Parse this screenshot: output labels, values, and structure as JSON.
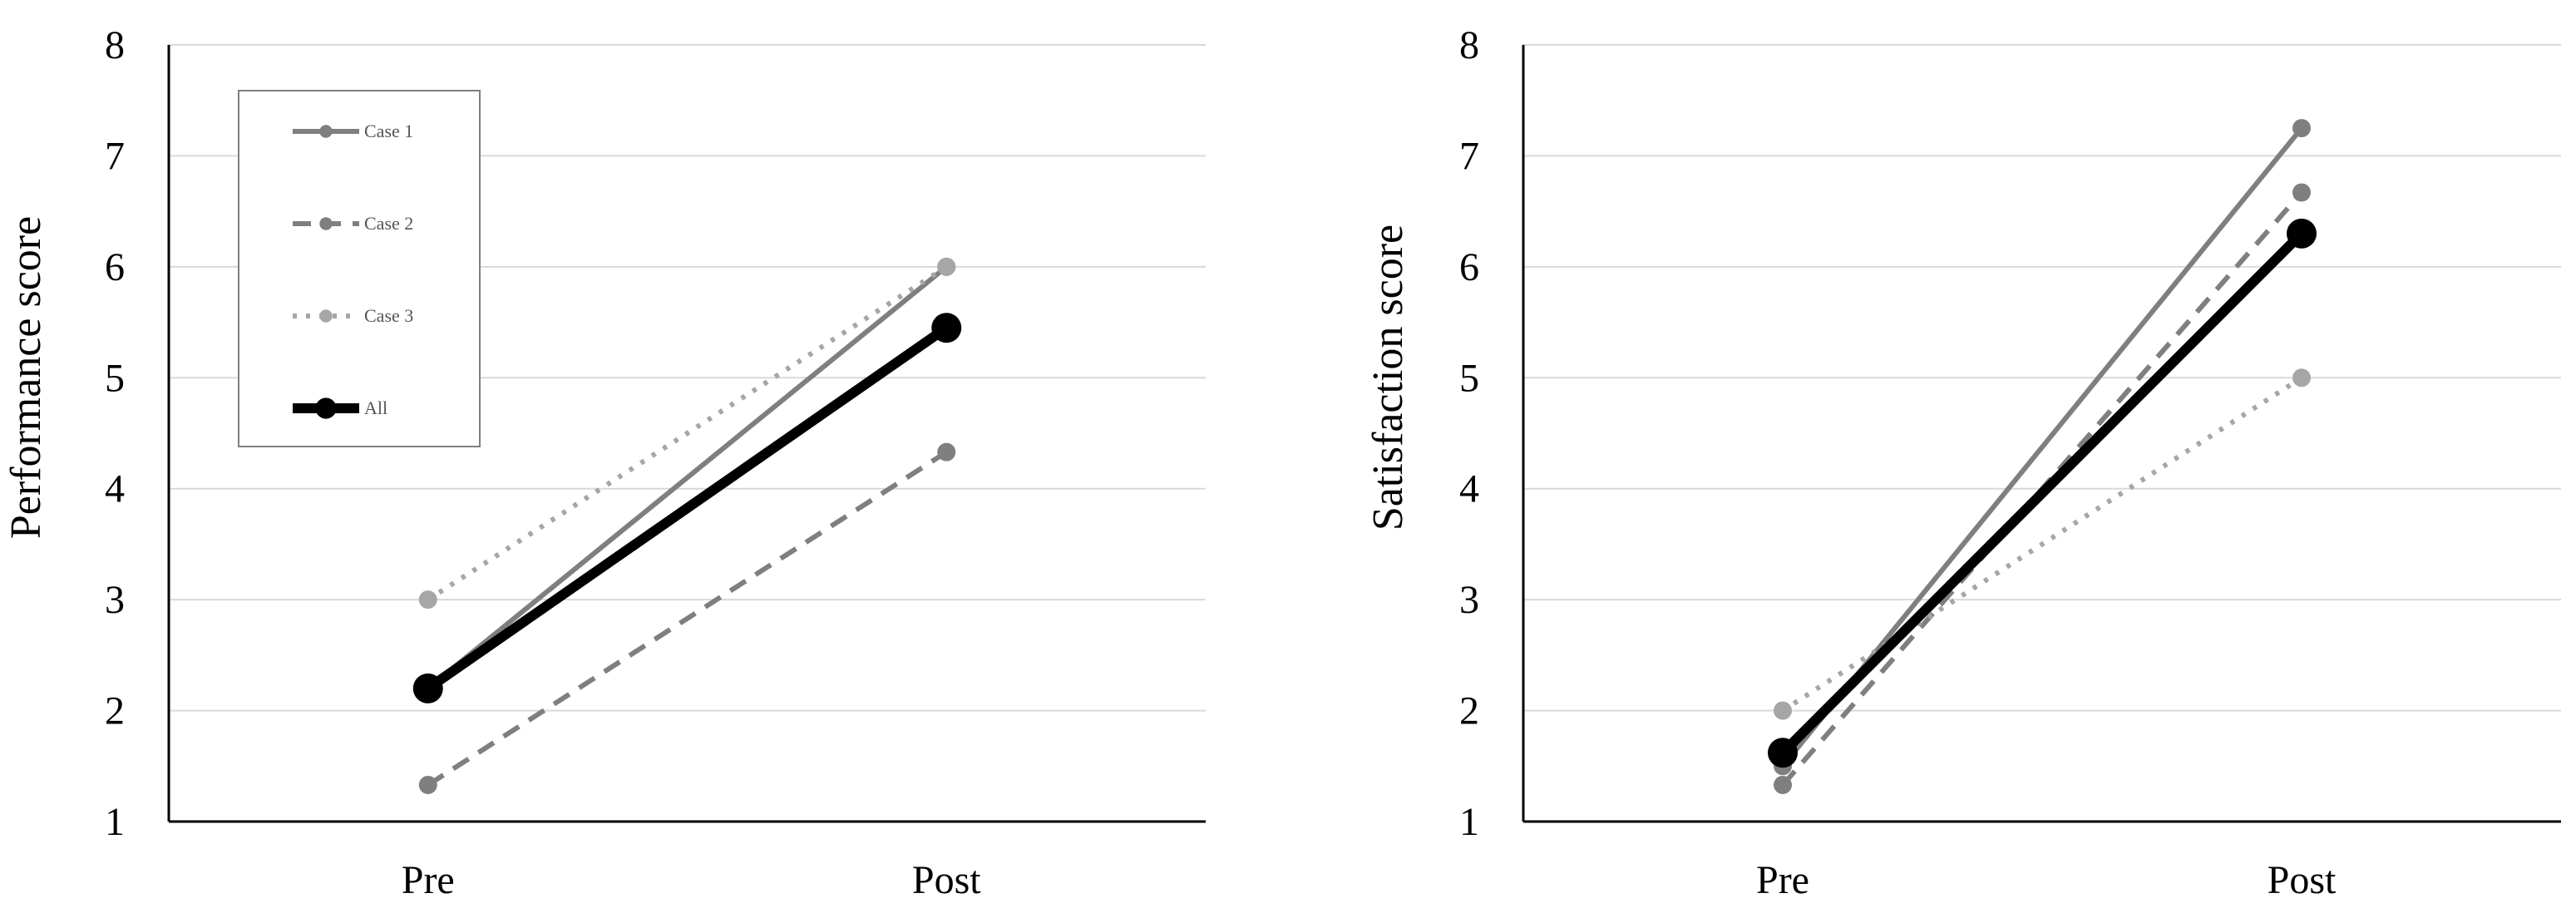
{
  "chart_data": [
    {
      "type": "line",
      "title": "",
      "xlabel": "",
      "ylabel": "Performance score",
      "categories": [
        "Pre",
        "Post"
      ],
      "ylim": [
        1,
        8
      ],
      "yticks": [
        1,
        2,
        3,
        4,
        5,
        6,
        7,
        8
      ],
      "grid": true,
      "legend": "top-left",
      "series": [
        {
          "name": "Case 1",
          "values": [
            2.2,
            6.0
          ],
          "color": "#7f7f7f",
          "style": "solid"
        },
        {
          "name": "Case 2",
          "values": [
            1.33,
            4.33
          ],
          "color": "#7f7f7f",
          "style": "dashed"
        },
        {
          "name": "Case 3",
          "values": [
            3.0,
            6.0
          ],
          "color": "#a6a6a6",
          "style": "dotted"
        },
        {
          "name": "All",
          "values": [
            2.2,
            5.45
          ],
          "color": "#000000",
          "style": "bold"
        }
      ]
    },
    {
      "type": "line",
      "title": "",
      "xlabel": "",
      "ylabel": "Satisfaction score",
      "categories": [
        "Pre",
        "Post"
      ],
      "ylim": [
        1,
        8
      ],
      "yticks": [
        1,
        2,
        3,
        4,
        5,
        6,
        7,
        8
      ],
      "grid": true,
      "series": [
        {
          "name": "Case 1",
          "values": [
            1.5,
            7.25
          ],
          "color": "#7f7f7f",
          "style": "solid"
        },
        {
          "name": "Case 2",
          "values": [
            1.33,
            6.67
          ],
          "color": "#7f7f7f",
          "style": "dashed"
        },
        {
          "name": "Case 3",
          "values": [
            2.0,
            5.0
          ],
          "color": "#a6a6a6",
          "style": "dotted"
        },
        {
          "name": "All",
          "values": [
            1.62,
            6.3
          ],
          "color": "#000000",
          "style": "bold"
        }
      ]
    }
  ]
}
